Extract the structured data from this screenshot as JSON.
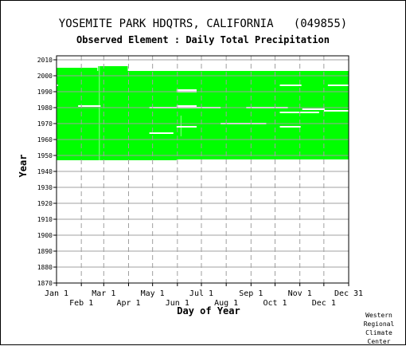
{
  "title": "YOSEMITE PARK HDQTRS, CALIFORNIA   (049855)",
  "subtitle": "Observed Element : Daily Total Precipitation",
  "credit": [
    "Western",
    "Regional",
    "Climate",
    "Center"
  ],
  "colors": {
    "data": "#00ff00",
    "background": "#ffffff",
    "grid": "#a0a0a0",
    "axis": "#000000"
  },
  "chart_data": {
    "type": "heatmap",
    "xlabel": "Day of Year",
    "ylabel": "Year",
    "xlim": [
      1,
      366
    ],
    "ylim": [
      1870,
      2010
    ],
    "x_ticks": [
      {
        "label": "Jan 1",
        "day": 1,
        "row": 1
      },
      {
        "label": "Feb 1",
        "day": 32,
        "row": 2
      },
      {
        "label": "Mar 1",
        "day": 60,
        "row": 1
      },
      {
        "label": "Apr 1",
        "day": 91,
        "row": 2
      },
      {
        "label": "May 1",
        "day": 121,
        "row": 1
      },
      {
        "label": "Jun 1",
        "day": 152,
        "row": 2
      },
      {
        "label": "Jul 1",
        "day": 182,
        "row": 1
      },
      {
        "label": "Aug 1",
        "day": 213,
        "row": 2
      },
      {
        "label": "Sep 1",
        "day": 244,
        "row": 1
      },
      {
        "label": "Oct 1",
        "day": 274,
        "row": 2
      },
      {
        "label": "Nov 1",
        "day": 305,
        "row": 1
      },
      {
        "label": "Dec 1",
        "day": 335,
        "row": 2
      },
      {
        "label": "Dec 31",
        "day": 366,
        "row": 1
      }
    ],
    "y_ticks": [
      1870,
      1880,
      1890,
      1900,
      1910,
      1920,
      1930,
      1940,
      1950,
      1960,
      1970,
      1980,
      1990,
      2000,
      2010
    ],
    "data_blocks": [
      {
        "year_start": 1947,
        "year_end": 2003,
        "day_start": 1,
        "day_end": 366
      },
      {
        "year_start": 2003,
        "year_end": 2005,
        "day_start": 1,
        "day_end": 52
      },
      {
        "year_start": 2003,
        "year_end": 2006,
        "day_start": 53,
        "day_end": 90
      }
    ],
    "missing_segments": [
      {
        "year": 1994,
        "day_start": 1,
        "day_end": 3
      },
      {
        "year": 1981,
        "day_start": 28,
        "day_end": 56
      },
      {
        "year": 1991,
        "day_start": 151,
        "day_end": 176
      },
      {
        "year": 1990,
        "day_start": 151,
        "day_end": 176
      },
      {
        "year": 1981,
        "day_start": 151,
        "day_end": 176
      },
      {
        "year": 1980,
        "day_start": 117,
        "day_end": 206
      },
      {
        "year": 1968,
        "day_start": 151,
        "day_end": 176
      },
      {
        "year": 1964,
        "day_start": 117,
        "day_end": 147
      },
      {
        "year": 1970,
        "day_start": 206,
        "day_end": 263
      },
      {
        "year": 1980,
        "day_start": 238,
        "day_end": 290
      },
      {
        "year": 1994,
        "day_start": 280,
        "day_end": 307
      },
      {
        "year": 1968,
        "day_start": 280,
        "day_end": 306
      },
      {
        "year": 1977,
        "day_start": 280,
        "day_end": 329
      },
      {
        "year": 1979,
        "day_start": 308,
        "day_end": 336
      },
      {
        "year": 1978,
        "day_start": 335,
        "day_end": 366
      },
      {
        "year": 1994,
        "day_start": 340,
        "day_end": 366
      },
      {
        "year": 1947,
        "day_start": 151,
        "day_end": 366
      }
    ],
    "missing_days": [
      {
        "day_start": 54,
        "day_end": 55,
        "year_start": 1947,
        "year_end": 2006
      },
      {
        "day_start": 156,
        "day_end": 157,
        "year_start": 1962,
        "year_end": 1975
      }
    ]
  }
}
